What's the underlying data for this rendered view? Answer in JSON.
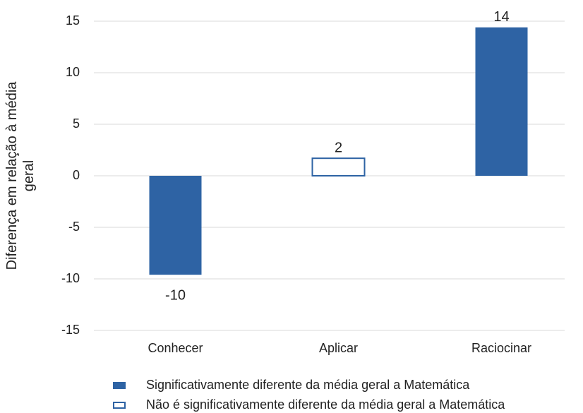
{
  "chart_data": {
    "type": "bar",
    "categories": [
      "Conhecer",
      "Aplicar",
      "Raciocinar"
    ],
    "values": [
      -9.6,
      1.7,
      14.4
    ],
    "value_labels": [
      "-10",
      "2",
      "14"
    ],
    "significant": [
      true,
      false,
      true
    ],
    "color": "#2e63a4",
    "ylabel_lines": [
      "Diferença em relação à média",
      "geral"
    ],
    "ylim": [
      -15,
      15
    ],
    "yticks": [
      -15,
      -10,
      -5,
      0,
      5,
      10,
      15
    ],
    "grid": true,
    "legend": [
      {
        "label": "Significativamente diferente da média geral a Matemática",
        "filled": true
      },
      {
        "label": "Não é significativamente diferente da média geral a Matemática",
        "filled": false
      }
    ]
  }
}
